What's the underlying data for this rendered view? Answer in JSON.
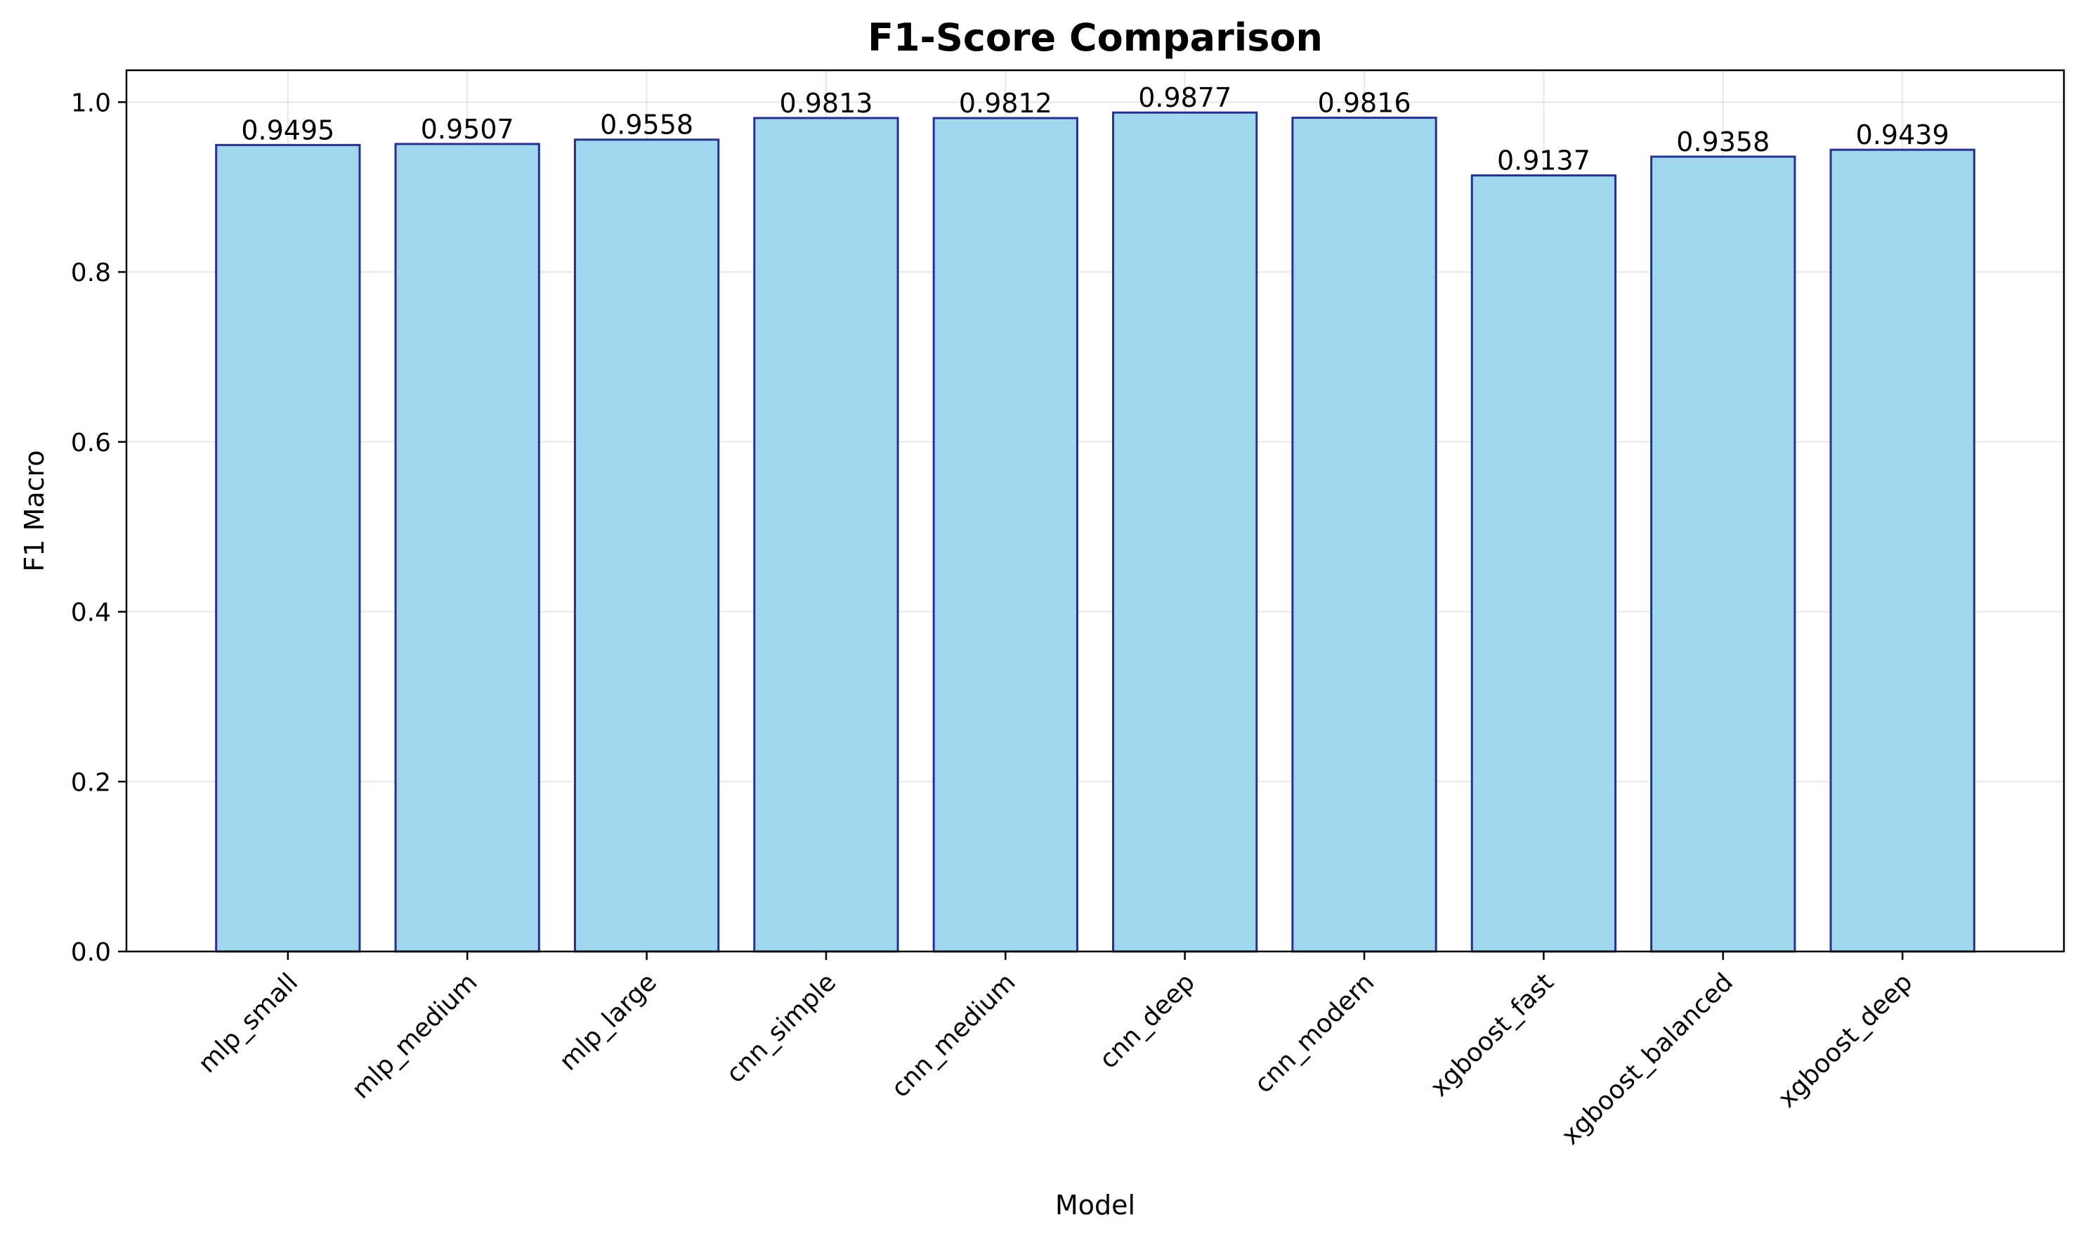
{
  "chart_data": {
    "type": "bar",
    "title": "F1-Score Comparison",
    "xlabel": "Model",
    "ylabel": "F1 Macro",
    "ylim": [
      0,
      1.0375
    ],
    "yticks": [
      0.0,
      0.2,
      0.4,
      0.6,
      0.8,
      1.0
    ],
    "ytick_labels": [
      "0.0",
      "0.2",
      "0.4",
      "0.6",
      "0.8",
      "1.0"
    ],
    "grid": true,
    "categories": [
      "mlp_small",
      "mlp_medium",
      "mlp_large",
      "cnn_simple",
      "cnn_medium",
      "cnn_deep",
      "cnn_modern",
      "xgboost_fast",
      "xgboost_balanced",
      "xgboost_deep"
    ],
    "values": [
      0.9495,
      0.9507,
      0.9558,
      0.9813,
      0.9812,
      0.9877,
      0.9816,
      0.9137,
      0.9358,
      0.9439
    ],
    "value_labels": [
      "0.9495",
      "0.9507",
      "0.9558",
      "0.9813",
      "0.9812",
      "0.9877",
      "0.9816",
      "0.9137",
      "0.9358",
      "0.9439"
    ],
    "colors": {
      "bar_fill": "#a0d6ee",
      "bar_edge": "#26318c"
    }
  }
}
